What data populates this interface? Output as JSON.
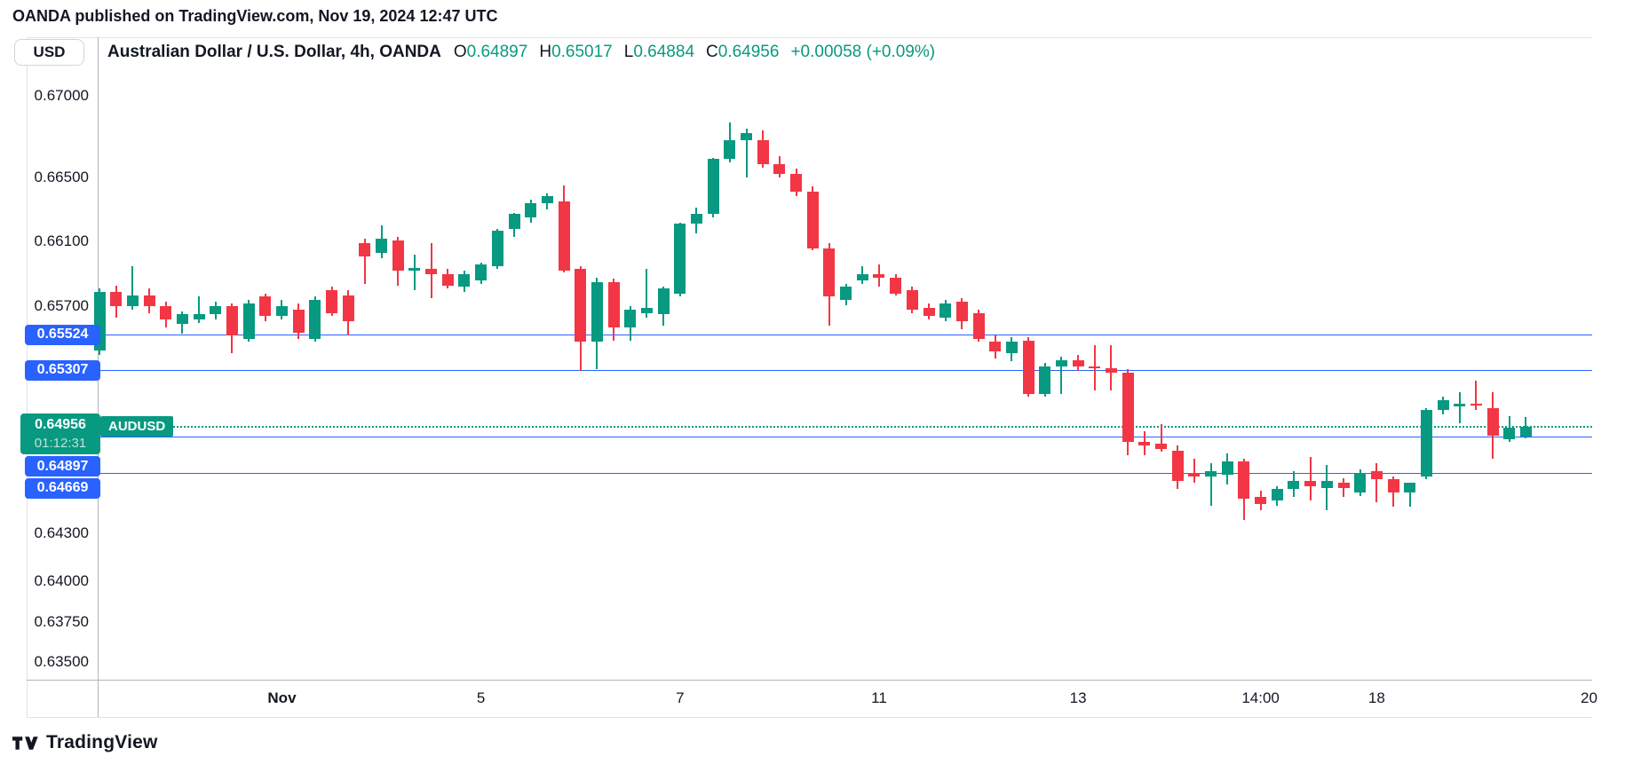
{
  "page": {
    "published_note": "OANDA published on TradingView.com, Nov 19, 2024 12:47 UTC"
  },
  "header": {
    "currency_button": "USD",
    "symbol_title": "Australian Dollar / U.S. Dollar, 4h, OANDA",
    "ohlc": {
      "items": [
        {
          "k": "O",
          "v": "0.64897"
        },
        {
          "k": "H",
          "v": "0.65017"
        },
        {
          "k": "L",
          "v": "0.64884"
        },
        {
          "k": "C",
          "v": "0.64956"
        }
      ],
      "change": "+0.00058 (+0.09%)"
    }
  },
  "colors": {
    "up": "#089981",
    "down": "#F23645",
    "line_blue": "#2962FF",
    "text": "#131722"
  },
  "price_axis": {
    "ticks": [
      {
        "text": "0.67000",
        "value": 0.67
      },
      {
        "text": "0.66500",
        "value": 0.665
      },
      {
        "text": "0.66100",
        "value": 0.661
      },
      {
        "text": "0.65700",
        "value": 0.657
      },
      {
        "text": "0.64300",
        "value": 0.643
      },
      {
        "text": "0.64000",
        "value": 0.64
      },
      {
        "text": "0.63750",
        "value": 0.6375
      },
      {
        "text": "0.63500",
        "value": 0.635
      }
    ],
    "badges": [
      {
        "text": "0.65524",
        "price": 0.65524,
        "dy": 0
      },
      {
        "text": "0.65307",
        "price": 0.65307,
        "dy": 0
      },
      {
        "text": "0.64897",
        "price": 0.64897,
        "dy": 34
      },
      {
        "text": "0.64669",
        "price": 0.64669,
        "dy": 17
      }
    ]
  },
  "price_lines": [
    {
      "price": 0.65524
    },
    {
      "price": 0.65307
    },
    {
      "price": 0.64897
    },
    {
      "price": 0.64669
    }
  ],
  "current_price": {
    "text": "0.64956",
    "price": 0.64956,
    "countdown": "01:12:31",
    "tag": "AUDUSD"
  },
  "time_axis": {
    "labels": [
      {
        "text": "Nov",
        "i": 11,
        "bold": true
      },
      {
        "text": "5",
        "i": 23,
        "bold": false
      },
      {
        "text": "7",
        "i": 35,
        "bold": false
      },
      {
        "text": "11",
        "i": 47,
        "bold": false
      },
      {
        "text": "13",
        "i": 59,
        "bold": false
      },
      {
        "text": "14:00",
        "i": 70,
        "bold": false
      },
      {
        "text": "18",
        "i": 77,
        "bold": false
      },
      {
        "text": "20",
        "i": 89.8,
        "bold": false
      }
    ]
  },
  "footer": {
    "logo_text": "TradingView"
  },
  "chart_data": {
    "type": "candlestick",
    "symbol": "AUDUSD",
    "title": "Australian Dollar / U.S. Dollar, 4h, OANDA",
    "timeframe": "4h",
    "ylim": [
      0.63393,
      0.67364
    ],
    "grid": false,
    "current_price": 0.64956,
    "alert_line_prices": [
      0.65524,
      0.65307,
      0.64897,
      0.64669
    ],
    "candles_format": [
      "open",
      "high",
      "low",
      "close"
    ],
    "candles": [
      [
        0.6543,
        0.6581,
        0.654,
        0.6579
      ],
      [
        0.6579,
        0.6583,
        0.6563,
        0.657
      ],
      [
        0.657,
        0.6595,
        0.6568,
        0.6577
      ],
      [
        0.6577,
        0.6581,
        0.6566,
        0.657
      ],
      [
        0.657,
        0.6573,
        0.6557,
        0.6562
      ],
      [
        0.6559,
        0.6567,
        0.6553,
        0.6565
      ],
      [
        0.6562,
        0.6576,
        0.656,
        0.6565
      ],
      [
        0.6565,
        0.6573,
        0.6562,
        0.657
      ],
      [
        0.657,
        0.6572,
        0.6541,
        0.6552
      ],
      [
        0.655,
        0.6574,
        0.6548,
        0.6572
      ],
      [
        0.6576,
        0.6578,
        0.6561,
        0.6564
      ],
      [
        0.6564,
        0.6574,
        0.6562,
        0.657
      ],
      [
        0.6568,
        0.6572,
        0.655,
        0.6554
      ],
      [
        0.655,
        0.6576,
        0.6548,
        0.6574
      ],
      [
        0.658,
        0.6582,
        0.6564,
        0.6566
      ],
      [
        0.6577,
        0.658,
        0.6552,
        0.6561
      ],
      [
        0.6609,
        0.6612,
        0.6584,
        0.6601
      ],
      [
        0.6603,
        0.662,
        0.66,
        0.6612
      ],
      [
        0.6611,
        0.6613,
        0.6583,
        0.6592
      ],
      [
        0.6592,
        0.6602,
        0.658,
        0.6594
      ],
      [
        0.6593,
        0.6609,
        0.6575,
        0.659
      ],
      [
        0.659,
        0.6593,
        0.6581,
        0.6583
      ],
      [
        0.6582,
        0.6592,
        0.6579,
        0.659
      ],
      [
        0.6586,
        0.6597,
        0.6584,
        0.6596
      ],
      [
        0.6595,
        0.6618,
        0.6593,
        0.6617
      ],
      [
        0.6618,
        0.6628,
        0.6613,
        0.6627
      ],
      [
        0.6625,
        0.6636,
        0.6622,
        0.6634
      ],
      [
        0.6634,
        0.664,
        0.663,
        0.6638
      ],
      [
        0.6635,
        0.6645,
        0.6591,
        0.6592
      ],
      [
        0.6593,
        0.6595,
        0.653,
        0.6548
      ],
      [
        0.6548,
        0.6588,
        0.6531,
        0.6585
      ],
      [
        0.6585,
        0.6587,
        0.6549,
        0.6557
      ],
      [
        0.6557,
        0.657,
        0.6549,
        0.6568
      ],
      [
        0.6566,
        0.6593,
        0.6563,
        0.6569
      ],
      [
        0.6565,
        0.6582,
        0.6558,
        0.6581
      ],
      [
        0.6578,
        0.6622,
        0.6576,
        0.6621
      ],
      [
        0.6621,
        0.6631,
        0.6615,
        0.6627
      ],
      [
        0.6627,
        0.6662,
        0.6625,
        0.6661
      ],
      [
        0.6661,
        0.6684,
        0.6659,
        0.6673
      ],
      [
        0.6673,
        0.668,
        0.665,
        0.6677
      ],
      [
        0.6673,
        0.6679,
        0.6656,
        0.6658
      ],
      [
        0.6658,
        0.6663,
        0.665,
        0.6652
      ],
      [
        0.6652,
        0.6655,
        0.6638,
        0.6641
      ],
      [
        0.6641,
        0.6644,
        0.6605,
        0.6606
      ],
      [
        0.6606,
        0.6609,
        0.6558,
        0.6576
      ],
      [
        0.6574,
        0.6584,
        0.6571,
        0.6582
      ],
      [
        0.6586,
        0.6595,
        0.6584,
        0.659
      ],
      [
        0.659,
        0.6596,
        0.6582,
        0.6588
      ],
      [
        0.6588,
        0.659,
        0.6577,
        0.6578
      ],
      [
        0.658,
        0.6582,
        0.6566,
        0.6568
      ],
      [
        0.6569,
        0.6572,
        0.6562,
        0.6564
      ],
      [
        0.6563,
        0.6574,
        0.6561,
        0.6572
      ],
      [
        0.6573,
        0.6575,
        0.6556,
        0.6561
      ],
      [
        0.6566,
        0.6568,
        0.6548,
        0.655
      ],
      [
        0.6548,
        0.6552,
        0.6538,
        0.6542
      ],
      [
        0.6541,
        0.6551,
        0.6536,
        0.6548
      ],
      [
        0.6549,
        0.6551,
        0.6514,
        0.6516
      ],
      [
        0.6516,
        0.6535,
        0.6514,
        0.6533
      ],
      [
        0.6533,
        0.6539,
        0.6516,
        0.6537
      ],
      [
        0.6537,
        0.654,
        0.653,
        0.6533
      ],
      [
        0.6533,
        0.6546,
        0.6518,
        0.6532
      ],
      [
        0.6532,
        0.6546,
        0.6518,
        0.6529
      ],
      [
        0.6529,
        0.6531,
        0.6478,
        0.6486
      ],
      [
        0.6486,
        0.6493,
        0.6478,
        0.6484
      ],
      [
        0.6485,
        0.6497,
        0.648,
        0.6482
      ],
      [
        0.6481,
        0.6484,
        0.6457,
        0.6462
      ],
      [
        0.6467,
        0.6476,
        0.6461,
        0.6465
      ],
      [
        0.6465,
        0.6473,
        0.6447,
        0.6468
      ],
      [
        0.6466,
        0.6479,
        0.646,
        0.6474
      ],
      [
        0.6474,
        0.6476,
        0.6438,
        0.6451
      ],
      [
        0.6452,
        0.6456,
        0.6444,
        0.6448
      ],
      [
        0.645,
        0.6459,
        0.6447,
        0.6457
      ],
      [
        0.6457,
        0.6468,
        0.6452,
        0.6462
      ],
      [
        0.6462,
        0.6477,
        0.645,
        0.6459
      ],
      [
        0.6458,
        0.6472,
        0.6444,
        0.6462
      ],
      [
        0.6461,
        0.6464,
        0.6452,
        0.6458
      ],
      [
        0.6455,
        0.6469,
        0.6453,
        0.6467
      ],
      [
        0.6468,
        0.6473,
        0.6449,
        0.6463
      ],
      [
        0.6463,
        0.6465,
        0.6446,
        0.6455
      ],
      [
        0.6455,
        0.6461,
        0.6446,
        0.6461
      ],
      [
        0.6465,
        0.6507,
        0.6463,
        0.6506
      ],
      [
        0.6506,
        0.6514,
        0.6503,
        0.6512
      ],
      [
        0.6508,
        0.6517,
        0.6498,
        0.651
      ],
      [
        0.651,
        0.6524,
        0.6506,
        0.6509
      ],
      [
        0.6507,
        0.6517,
        0.6476,
        0.649
      ],
      [
        0.6488,
        0.6502,
        0.6486,
        0.6495
      ],
      [
        0.64897,
        0.65017,
        0.64884,
        0.64956
      ]
    ]
  }
}
